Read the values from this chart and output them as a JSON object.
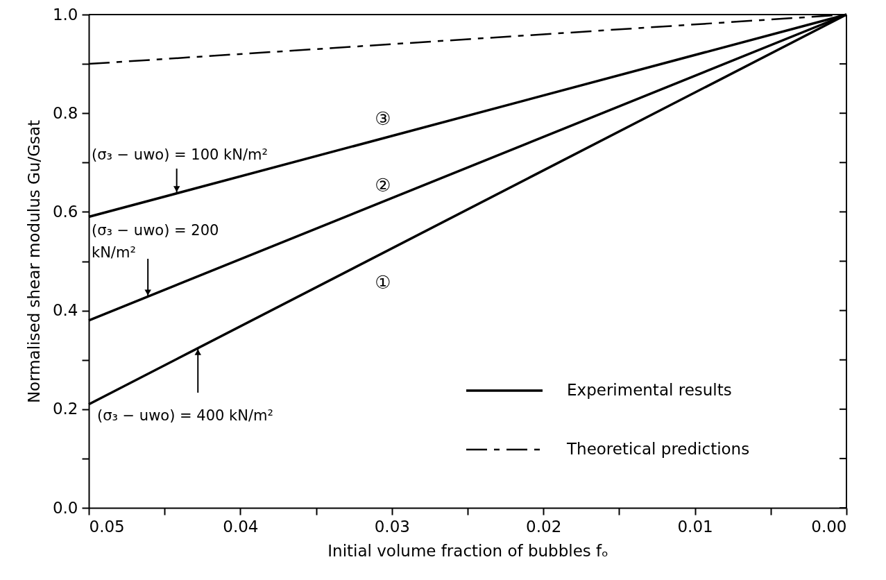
{
  "chart_data": {
    "type": "line",
    "xlabel": "Initial volume fraction of bubbles fₒ",
    "ylabel": "Normalised shear modulus Gu/Gsat",
    "x": [
      0.05,
      0.0
    ],
    "series": [
      {
        "name": "Experimental results",
        "color": "#000000",
        "values": [
          0.21,
          1.0
        ],
        "line_style": "solid"
      },
      {
        "color": "#000000",
        "values": [
          0.38,
          1.0
        ],
        "line_style": "solid"
      },
      {
        "color": "#000000",
        "values": [
          0.59,
          1.0
        ],
        "line_style": "solid"
      },
      {
        "name": "Theoretical predictions",
        "color": "#000000",
        "values": [
          0.9,
          1.0
        ],
        "line_style": "dashed"
      }
    ],
    "xlim": [
      0.05,
      0.0
    ],
    "xticks": [
      {
        "value": 0.05,
        "label": "0.05"
      },
      {
        "value": 0.045,
        "label": null
      },
      {
        "value": 0.04,
        "label": "0.04"
      },
      {
        "value": 0.035,
        "label": null
      },
      {
        "value": 0.03,
        "label": "0.03"
      },
      {
        "value": 0.025,
        "label": null
      },
      {
        "value": 0.02,
        "label": "0.02"
      },
      {
        "value": 0.015,
        "label": null
      },
      {
        "value": 0.01,
        "label": "0.01"
      },
      {
        "value": 0.005,
        "label": null
      },
      {
        "value": 0.0,
        "label": "0.00"
      }
    ],
    "ylim": [
      0.0,
      1.0
    ],
    "yticks": [
      {
        "value": 0.0,
        "label": "0.0"
      },
      {
        "value": 0.1,
        "label": null
      },
      {
        "value": 0.2,
        "label": "0.2"
      },
      {
        "value": 0.3,
        "label": null
      },
      {
        "value": 0.4,
        "label": "0.4"
      },
      {
        "value": 0.5,
        "label": null
      },
      {
        "value": 0.6,
        "label": "0.6"
      },
      {
        "value": 0.7,
        "label": null
      },
      {
        "value": 0.8,
        "label": "0.8"
      },
      {
        "value": 0.9,
        "label": null
      },
      {
        "value": 1.0,
        "label": "1.0"
      }
    ],
    "annotations": [
      "③",
      "②",
      "①",
      {
        "text": "(σ₃ − uwo) = 100 kN/m²",
        "x": 0.0442,
        "y": 0.638
      },
      {
        "text": "(σ₃ − uwo) = 200 kN/m²",
        "x": 0.0461,
        "y": 0.428
      },
      {
        "text": "(σ₃ − uwo) = 400 kN/m²",
        "x": 0.0428,
        "y": 0.324
      }
    ],
    "grid": false,
    "legend": "bottom right",
    "marker": "none"
  }
}
